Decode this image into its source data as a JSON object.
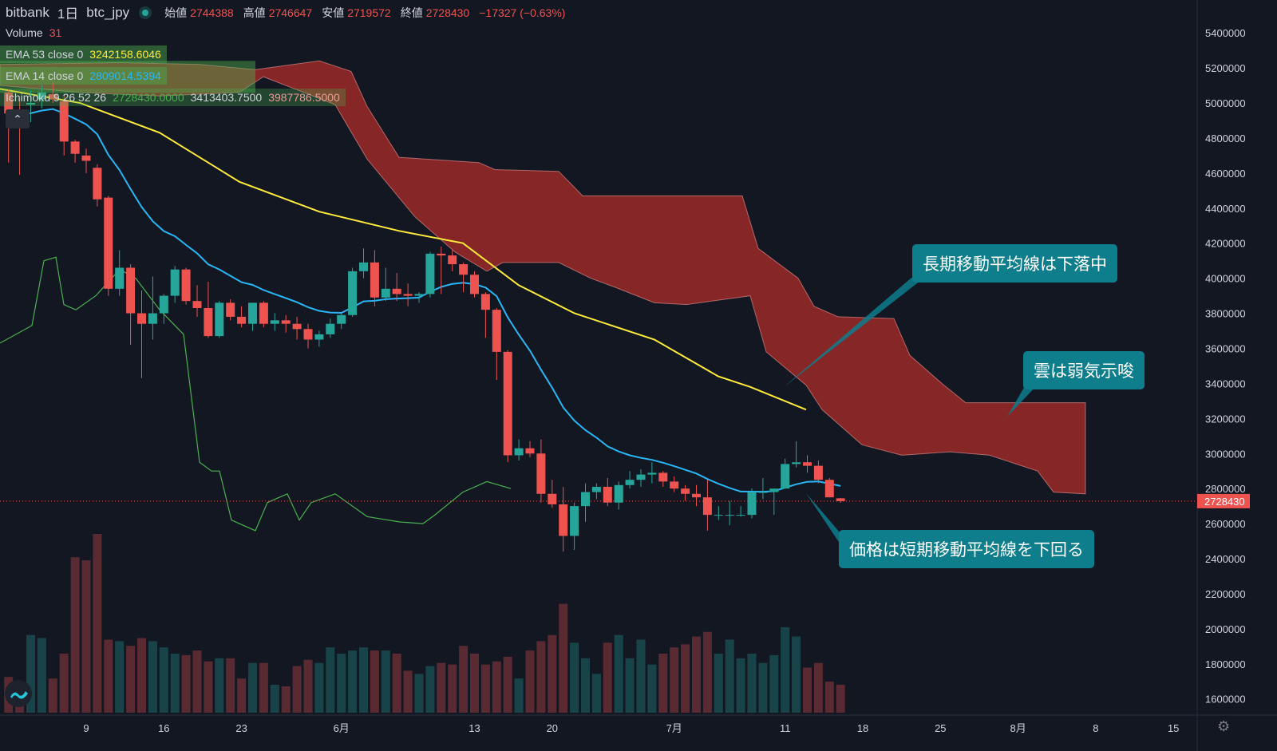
{
  "header": {
    "exchange": "bitbank",
    "interval": "1日",
    "symbol": "btc_jpy",
    "ohlc": [
      {
        "label": "始値",
        "value": "2744388"
      },
      {
        "label": "高値",
        "value": "2746647"
      },
      {
        "label": "安値",
        "value": "2719572"
      },
      {
        "label": "終値",
        "value": "2728430"
      }
    ],
    "change": "−17327 (−0.63%)"
  },
  "legends": [
    {
      "name": "Volume",
      "values": [
        "31"
      ],
      "colors": [
        "#ef5350"
      ]
    },
    {
      "name": "EMA 53 close 0",
      "values": [
        "3242158.6046"
      ],
      "colors": [
        "#ffeb3b"
      ]
    },
    {
      "name": "EMA 14 close 0",
      "values": [
        "2809014.5394"
      ],
      "colors": [
        "#29b6f6"
      ]
    },
    {
      "name": "Ichimoku 9 26 52 26",
      "values": [
        "2728430.0000",
        "3413403.7500",
        "3987786.5000"
      ],
      "colors": [
        "#4caf50",
        "#d1d4dc",
        "#ef9a9a"
      ]
    }
  ],
  "collapse_button": "⌃",
  "annotations": [
    {
      "text": "長期移動平均線は下落中"
    },
    {
      "text": "雲は弱気示唆"
    },
    {
      "text": "価格は短期移動平均線を下回る"
    }
  ],
  "last_price_label": "2728430",
  "chart_data": {
    "type": "candlestick",
    "title": "bitbank 1日 btc_jpy",
    "y_axis": {
      "ticks": [
        1600000,
        1800000,
        2000000,
        2200000,
        2400000,
        2600000,
        2800000,
        3000000,
        3200000,
        3400000,
        3600000,
        3800000,
        4000000,
        4200000,
        4400000,
        4600000,
        4800000,
        5000000,
        5200000,
        5400000
      ],
      "range": [
        1540000,
        5560000
      ]
    },
    "x_axis": {
      "labels": [
        "9",
        "16",
        "23",
        "6月",
        "13",
        "20",
        "7月",
        "11",
        "18",
        "25",
        "8月",
        "8",
        "15"
      ],
      "label_day_index": [
        0,
        7,
        14,
        23,
        35,
        42,
        53,
        63,
        70,
        77,
        84,
        91,
        98
      ]
    },
    "candles": [
      [
        5060000,
        5080000,
        4660000,
        4940000
      ],
      [
        4920000,
        5010000,
        4590000,
        4880000
      ],
      [
        4990000,
        5070000,
        4890000,
        5000000
      ],
      [
        5020000,
        5100000,
        4970000,
        5060000
      ],
      [
        5050000,
        5120000,
        5000000,
        5020000
      ],
      [
        5010000,
        5050000,
        4700000,
        4780000
      ],
      [
        4780000,
        4790000,
        4660000,
        4710000
      ],
      [
        4700000,
        4740000,
        4600000,
        4670000
      ],
      [
        4630000,
        4650000,
        4410000,
        4450000
      ],
      [
        4460000,
        4470000,
        3900000,
        3940000
      ],
      [
        3940000,
        4160000,
        3900000,
        4060000
      ],
      [
        4060000,
        4080000,
        3620000,
        3800000
      ],
      [
        3800000,
        3930000,
        3430000,
        3740000
      ],
      [
        3740000,
        4010000,
        3650000,
        3800000
      ],
      [
        3800000,
        3910000,
        3740000,
        3900000
      ],
      [
        3900000,
        4070000,
        3860000,
        4050000
      ],
      [
        4050000,
        4060000,
        3850000,
        3870000
      ],
      [
        3870000,
        3960000,
        3780000,
        3830000
      ],
      [
        3830000,
        3980000,
        3660000,
        3670000
      ],
      [
        3670000,
        3870000,
        3660000,
        3860000
      ],
      [
        3860000,
        3880000,
        3760000,
        3780000
      ],
      [
        3780000,
        3840000,
        3720000,
        3740000
      ],
      [
        3740000,
        3860000,
        3700000,
        3860000
      ],
      [
        3860000,
        3870000,
        3720000,
        3740000
      ],
      [
        3740000,
        3800000,
        3700000,
        3760000
      ],
      [
        3760000,
        3790000,
        3690000,
        3740000
      ],
      [
        3740000,
        3780000,
        3650000,
        3710000
      ],
      [
        3710000,
        3740000,
        3600000,
        3650000
      ],
      [
        3650000,
        3700000,
        3610000,
        3680000
      ],
      [
        3680000,
        3770000,
        3660000,
        3740000
      ],
      [
        3740000,
        3800000,
        3710000,
        3790000
      ],
      [
        3790000,
        4060000,
        3780000,
        4040000
      ],
      [
        4040000,
        4170000,
        4000000,
        4090000
      ],
      [
        4090000,
        4160000,
        3840000,
        3890000
      ],
      [
        3890000,
        4060000,
        3870000,
        3940000
      ],
      [
        3940000,
        4030000,
        3870000,
        3910000
      ],
      [
        3910000,
        3970000,
        3840000,
        3900000
      ],
      [
        3900000,
        3920000,
        3860000,
        3910000
      ],
      [
        3910000,
        4150000,
        3890000,
        4140000
      ],
      [
        4140000,
        4180000,
        3910000,
        4130000
      ],
      [
        4130000,
        4160000,
        4040000,
        4080000
      ],
      [
        4080000,
        4090000,
        3920000,
        4020000
      ],
      [
        4020000,
        4040000,
        3890000,
        3910000
      ],
      [
        3910000,
        3920000,
        3660000,
        3820000
      ],
      [
        3820000,
        3830000,
        3420000,
        3580000
      ],
      [
        3580000,
        3590000,
        2950000,
        2990000
      ],
      [
        2990000,
        3080000,
        2960000,
        3030000
      ],
      [
        3030000,
        3070000,
        2980000,
        3000000
      ],
      [
        3000000,
        3080000,
        2720000,
        2770000
      ],
      [
        2770000,
        2850000,
        2690000,
        2710000
      ],
      [
        2710000,
        2810000,
        2440000,
        2530000
      ],
      [
        2530000,
        2720000,
        2450000,
        2700000
      ],
      [
        2700000,
        2830000,
        2610000,
        2780000
      ],
      [
        2780000,
        2830000,
        2740000,
        2810000
      ],
      [
        2810000,
        2860000,
        2700000,
        2720000
      ],
      [
        2720000,
        2840000,
        2680000,
        2820000
      ],
      [
        2820000,
        2900000,
        2800000,
        2850000
      ],
      [
        2850000,
        2910000,
        2810000,
        2880000
      ],
      [
        2880000,
        2950000,
        2830000,
        2890000
      ],
      [
        2890000,
        2900000,
        2810000,
        2840000
      ],
      [
        2840000,
        2870000,
        2780000,
        2800000
      ],
      [
        2800000,
        2820000,
        2730000,
        2770000
      ],
      [
        2770000,
        2820000,
        2700000,
        2750000
      ],
      [
        2750000,
        2850000,
        2560000,
        2650000
      ],
      [
        2650000,
        2700000,
        2620000,
        2650000
      ],
      [
        2650000,
        2730000,
        2590000,
        2650000
      ],
      [
        2650000,
        2700000,
        2640000,
        2650000
      ],
      [
        2650000,
        2800000,
        2630000,
        2780000
      ],
      [
        2780000,
        2860000,
        2740000,
        2780000
      ],
      [
        2780000,
        2790000,
        2650000,
        2800000
      ],
      [
        2800000,
        2970000,
        2800000,
        2940000
      ],
      [
        2940000,
        3070000,
        2920000,
        2950000
      ],
      [
        2950000,
        2990000,
        2890000,
        2930000
      ],
      [
        2930000,
        2960000,
        2830000,
        2850000
      ],
      [
        2850000,
        2860000,
        2750000,
        2750000
      ],
      [
        2744388,
        2746647,
        2719572,
        2728430
      ]
    ],
    "volume": [
      23,
      9,
      50,
      48,
      22,
      38,
      100,
      98,
      115,
      47,
      46,
      43,
      48,
      46,
      42,
      38,
      37,
      40,
      33,
      35,
      35,
      22,
      32,
      32,
      18,
      17,
      30,
      34,
      32,
      42,
      38,
      40,
      42,
      40,
      40,
      38,
      27,
      25,
      30,
      32,
      31,
      43,
      38,
      31,
      33,
      36,
      22,
      40,
      46,
      50,
      70,
      45,
      35,
      25,
      45,
      50,
      35,
      47,
      31,
      38,
      42,
      44,
      49,
      52,
      38,
      47,
      35,
      38,
      32,
      37,
      55,
      49,
      29,
      32,
      20,
      18
    ],
    "volume_unit": "relative"
  }
}
